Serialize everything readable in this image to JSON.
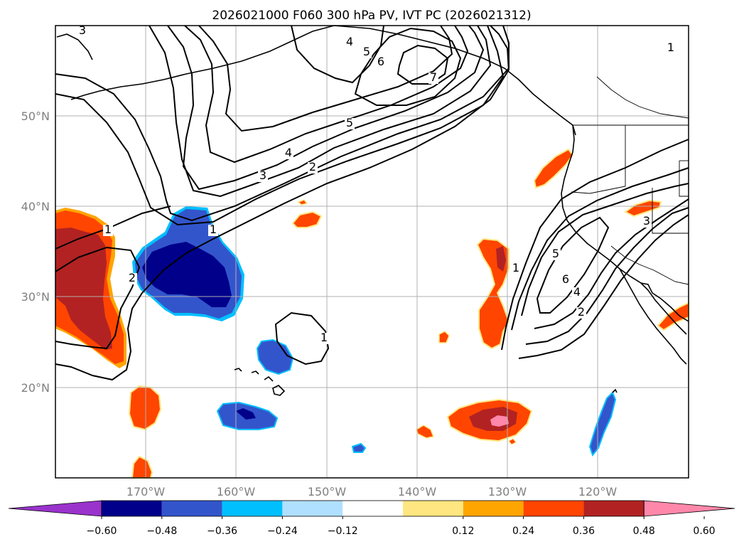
{
  "title": "2026021000 F060 300 hPa PV, IVT PC (2026021312)",
  "lat_labels": [
    "50°N",
    "40°N",
    "30°N",
    "20°N"
  ],
  "lon_labels": [
    "170°W",
    "160°W",
    "150°W",
    "140°W",
    "130°W",
    "120°W"
  ],
  "colorbar": {
    "ticks": [
      "−0.60",
      "−0.48",
      "−0.36",
      "−0.24",
      "−0.12",
      "0.12",
      "0.24",
      "0.36",
      "0.48",
      "0.60"
    ],
    "colors": [
      "#9933cc",
      "#00008b",
      "#3355cc",
      "#00bfff",
      "#b0e0ff",
      "#ffffff",
      "#ffe680",
      "#ffa500",
      "#ff4500",
      "#b22222",
      "#ff88aa"
    ]
  },
  "contour_labels": [
    "3",
    "4",
    "5",
    "6",
    "7",
    "5",
    "4",
    "3",
    "2",
    "1",
    "1",
    "2",
    "1",
    "1",
    "5",
    "6",
    "4",
    "2",
    "3",
    "1"
  ],
  "shading_colors": {
    "pos_low": "#ffa500",
    "pos_mid": "#ff4500",
    "pos_high": "#b22222",
    "pos_max": "#ff88aa",
    "neg_low": "#00bfff",
    "neg_mid": "#3355cc",
    "neg_high": "#00008b"
  }
}
